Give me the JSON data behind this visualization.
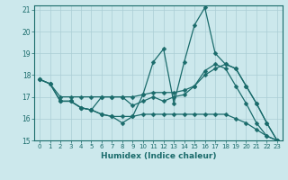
{
  "xlabel": "Humidex (Indice chaleur)",
  "bg_color": "#cce8ec",
  "grid_color": "#aacdd4",
  "line_color": "#1a6b6b",
  "xlim": [
    -0.5,
    23.5
  ],
  "ylim": [
    15,
    21.2
  ],
  "yticks": [
    15,
    16,
    17,
    18,
    19,
    20,
    21
  ],
  "xticks": [
    0,
    1,
    2,
    3,
    4,
    5,
    6,
    7,
    8,
    9,
    10,
    11,
    12,
    13,
    14,
    15,
    16,
    17,
    18,
    19,
    20,
    21,
    22,
    23
  ],
  "line1_x": [
    0,
    1,
    2,
    3,
    4,
    5,
    6,
    7,
    8,
    9,
    10,
    11,
    12,
    13,
    14,
    15,
    16,
    17,
    18,
    19,
    20,
    21,
    22,
    23
  ],
  "line1_y": [
    17.8,
    17.6,
    16.8,
    16.8,
    16.5,
    16.4,
    16.2,
    16.1,
    15.8,
    16.1,
    17.1,
    18.6,
    19.2,
    16.7,
    18.6,
    20.3,
    21.1,
    19.0,
    18.5,
    18.3,
    17.5,
    16.7,
    15.8,
    15.0
  ],
  "line2_x": [
    0,
    1,
    2,
    3,
    4,
    5,
    6,
    7,
    8,
    9,
    10,
    11,
    12,
    13,
    14,
    15,
    16,
    17,
    18,
    19,
    20,
    21,
    22,
    23
  ],
  "line2_y": [
    17.8,
    17.6,
    17.0,
    17.0,
    17.0,
    17.0,
    17.0,
    17.0,
    17.0,
    17.0,
    17.1,
    17.2,
    17.2,
    17.2,
    17.3,
    17.5,
    18.0,
    18.3,
    18.5,
    18.3,
    17.5,
    16.7,
    15.8,
    15.0
  ],
  "line3_x": [
    0,
    1,
    2,
    3,
    4,
    5,
    6,
    7,
    8,
    9,
    10,
    11,
    12,
    13,
    14,
    15,
    16,
    17,
    18,
    19,
    20,
    21,
    22,
    23
  ],
  "line3_y": [
    17.8,
    17.6,
    16.8,
    16.8,
    16.5,
    16.4,
    17.0,
    17.0,
    17.0,
    16.6,
    16.8,
    17.0,
    16.8,
    17.0,
    17.1,
    17.5,
    18.2,
    18.5,
    18.3,
    17.5,
    16.7,
    15.8,
    15.2,
    15.0
  ],
  "line4_x": [
    2,
    3,
    4,
    5,
    6,
    7,
    8,
    9,
    10,
    11,
    12,
    13,
    14,
    15,
    16,
    17,
    18,
    19,
    20,
    21,
    22,
    23
  ],
  "line4_y": [
    16.8,
    16.8,
    16.5,
    16.4,
    16.2,
    16.1,
    16.1,
    16.1,
    16.2,
    16.2,
    16.2,
    16.2,
    16.2,
    16.2,
    16.2,
    16.2,
    16.2,
    16.0,
    15.8,
    15.5,
    15.2,
    15.0
  ]
}
